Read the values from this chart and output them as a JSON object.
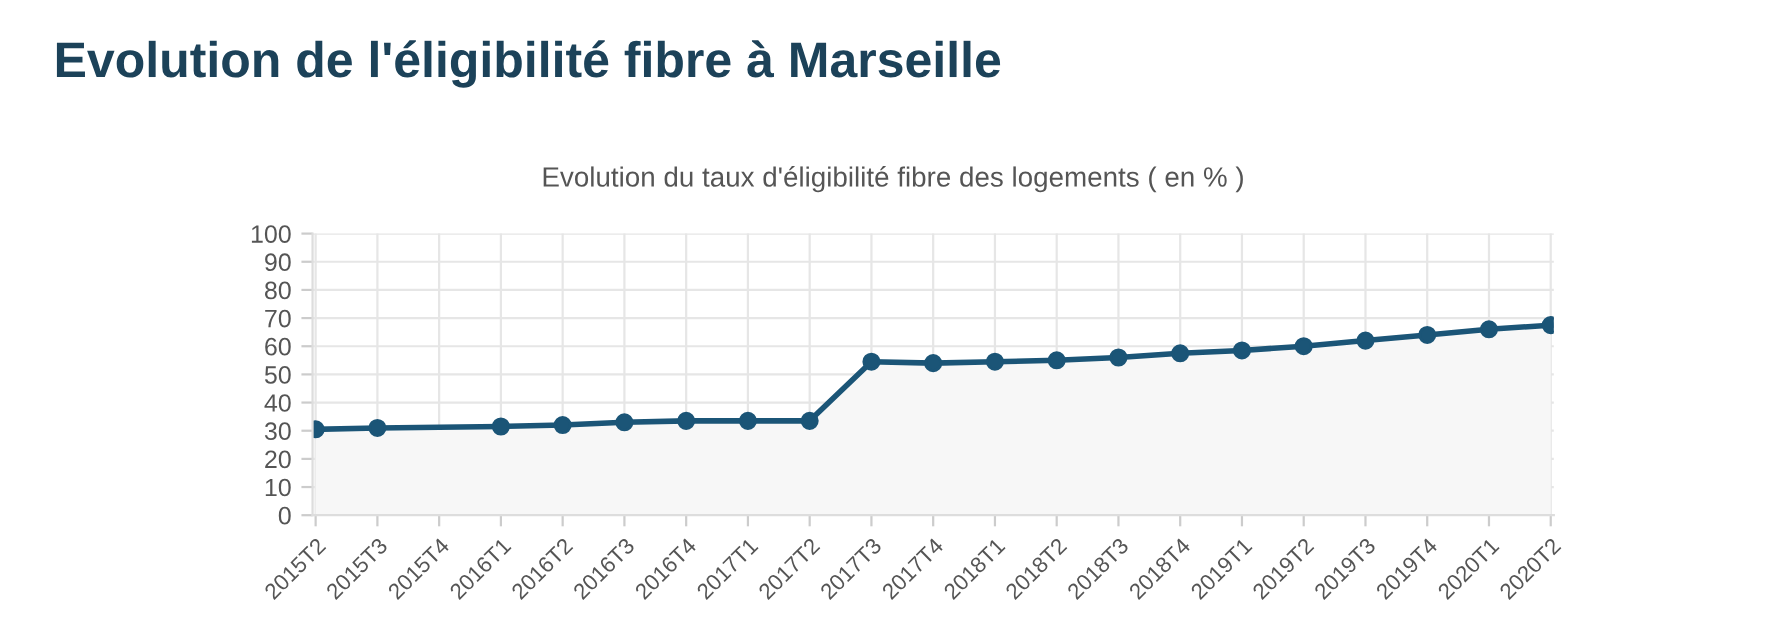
{
  "chart_data": {
    "type": "area",
    "title": "Evolution de l'éligibilité fibre à Marseille",
    "subtitle": "Evolution du taux d'éligibilité fibre des logements ( en % )",
    "categories": [
      "2015T2",
      "2015T3",
      "2015T4",
      "2016T1",
      "2016T2",
      "2016T3",
      "2016T4",
      "2017T1",
      "2017T2",
      "2017T3",
      "2017T4",
      "2018T1",
      "2018T2",
      "2018T3",
      "2018T4",
      "2019T1",
      "2019T2",
      "2019T3",
      "2019T4",
      "2020T1",
      "2020T2"
    ],
    "series": [
      {
        "color": "#1b5577",
        "values": [
          30.5,
          31,
          null,
          31.5,
          32,
          33,
          33.5,
          33.5,
          33.5,
          54.5,
          54,
          54.5,
          55,
          56,
          57.5,
          58.5,
          60,
          62,
          64,
          66,
          67.5
        ]
      }
    ],
    "ylim": [
      0,
      100
    ],
    "yticks": [
      0,
      10,
      20,
      30,
      40,
      50,
      60,
      70,
      80,
      90,
      100
    ],
    "grid": true,
    "marker": "circle",
    "line_style": "solid"
  }
}
